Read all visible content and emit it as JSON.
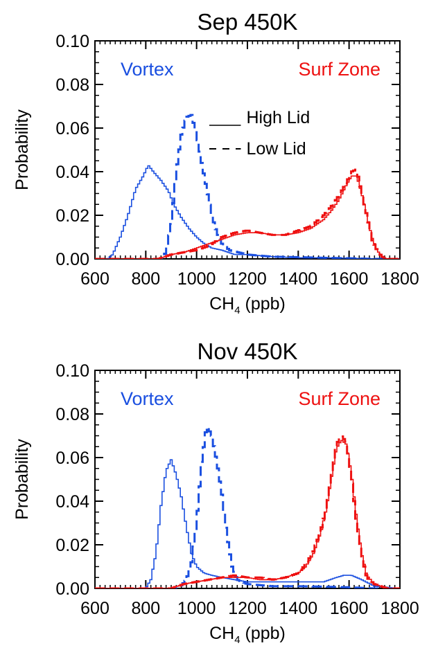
{
  "chart_data": [
    {
      "type": "line",
      "title": "Sep  450K",
      "xlabel": "CH",
      "xlabel_sub": "4",
      "xlabel_unit": " (ppb)",
      "ylabel": "Probability",
      "xlim": [
        600,
        1800
      ],
      "ylim": [
        0,
        0.1
      ],
      "xticks": [
        "600",
        "800",
        "1000",
        "1200",
        "1400",
        "1600",
        "1800"
      ],
      "yticks": [
        "0.00",
        "0.02",
        "0.04",
        "0.06",
        "0.08",
        "0.10"
      ],
      "annotations": {
        "left": "Vortex",
        "right": "Surf Zone",
        "solid": "High Lid",
        "dashed": "Low Lid"
      },
      "colors": {
        "vortex": "#1a4fe0",
        "surf": "#ee1111"
      },
      "series": [
        {
          "group": "vortex",
          "style": "solid",
          "x": [
            600,
            650,
            670,
            700,
            730,
            760,
            790,
            810,
            830,
            860,
            890,
            910,
            940,
            970,
            1000,
            1030,
            1060,
            1100,
            1150,
            1200,
            1300,
            1400,
            1500,
            1600,
            1700,
            1800
          ],
          "y": [
            0,
            0,
            0.002,
            0.01,
            0.02,
            0.032,
            0.038,
            0.043,
            0.04,
            0.036,
            0.031,
            0.025,
            0.019,
            0.014,
            0.01,
            0.007,
            0.005,
            0.004,
            0.002,
            0.002,
            0.001,
            0.0005,
            0.0005,
            0.0003,
            0,
            0
          ]
        },
        {
          "group": "vortex",
          "style": "dashed",
          "x": [
            600,
            860,
            880,
            900,
            920,
            940,
            960,
            980,
            1000,
            1020,
            1040,
            1060,
            1080,
            1100,
            1130,
            1200,
            1300,
            1400,
            1500,
            1600,
            1700,
            1800
          ],
          "y": [
            0,
            0,
            0.003,
            0.016,
            0.04,
            0.057,
            0.065,
            0.066,
            0.057,
            0.044,
            0.032,
            0.02,
            0.012,
            0.007,
            0.004,
            0.002,
            0.001,
            0.0008,
            0.0005,
            0.0003,
            0,
            0
          ]
        },
        {
          "group": "surf",
          "style": "solid",
          "x": [
            600,
            850,
            900,
            950,
            1000,
            1050,
            1100,
            1150,
            1200,
            1250,
            1300,
            1350,
            1400,
            1450,
            1500,
            1530,
            1560,
            1590,
            1610,
            1630,
            1650,
            1670,
            1690,
            1710,
            1730,
            1750,
            1800
          ],
          "y": [
            0,
            0,
            0.002,
            0.003,
            0.005,
            0.007,
            0.009,
            0.011,
            0.012,
            0.012,
            0.011,
            0.011,
            0.012,
            0.014,
            0.018,
            0.022,
            0.027,
            0.034,
            0.038,
            0.038,
            0.03,
            0.02,
            0.01,
            0.004,
            0.001,
            0,
            0
          ]
        },
        {
          "group": "surf",
          "style": "dashed",
          "x": [
            600,
            850,
            900,
            950,
            1000,
            1050,
            1100,
            1150,
            1200,
            1250,
            1300,
            1350,
            1400,
            1450,
            1500,
            1530,
            1560,
            1590,
            1610,
            1630,
            1650,
            1670,
            1690,
            1710,
            1730,
            1750,
            1800
          ],
          "y": [
            0,
            0,
            0.002,
            0.003,
            0.004,
            0.006,
            0.01,
            0.012,
            0.013,
            0.012,
            0.011,
            0.011,
            0.013,
            0.015,
            0.02,
            0.024,
            0.029,
            0.035,
            0.04,
            0.041,
            0.03,
            0.02,
            0.009,
            0.004,
            0.001,
            0,
            0
          ]
        }
      ]
    },
    {
      "type": "line",
      "title": "Nov  450K",
      "xlabel": "CH",
      "xlabel_sub": "4",
      "xlabel_unit": " (ppb)",
      "ylabel": "Probability",
      "xlim": [
        600,
        1800
      ],
      "ylim": [
        0,
        0.1
      ],
      "xticks": [
        "600",
        "800",
        "1000",
        "1200",
        "1400",
        "1600",
        "1800"
      ],
      "yticks": [
        "0.00",
        "0.02",
        "0.04",
        "0.06",
        "0.08",
        "0.10"
      ],
      "annotations": {
        "left": "Vortex",
        "right": "Surf Zone"
      },
      "colors": {
        "vortex": "#1a4fe0",
        "surf": "#ee1111"
      },
      "series": [
        {
          "group": "vortex",
          "style": "solid",
          "x": [
            600,
            800,
            820,
            840,
            860,
            880,
            900,
            920,
            940,
            960,
            980,
            1000,
            1030,
            1060,
            1100,
            1150,
            1200,
            1300,
            1400,
            1500,
            1550,
            1580,
            1610,
            1650,
            1700,
            1800
          ],
          "y": [
            0,
            0,
            0.004,
            0.016,
            0.038,
            0.054,
            0.059,
            0.052,
            0.042,
            0.028,
            0.016,
            0.01,
            0.007,
            0.006,
            0.005,
            0.004,
            0.003,
            0.003,
            0.003,
            0.003,
            0.005,
            0.006,
            0.006,
            0.004,
            0.001,
            0
          ]
        },
        {
          "group": "vortex",
          "style": "dashed",
          "x": [
            600,
            930,
            960,
            980,
            1000,
            1020,
            1040,
            1060,
            1080,
            1100,
            1120,
            1140,
            1160,
            1200,
            1300,
            1400,
            1500,
            1600,
            1700,
            1800
          ],
          "y": [
            0,
            0,
            0.004,
            0.012,
            0.03,
            0.058,
            0.075,
            0.07,
            0.058,
            0.043,
            0.024,
            0.01,
            0.004,
            0.002,
            0.001,
            0.001,
            0.0008,
            0.0005,
            0,
            0
          ]
        },
        {
          "group": "surf",
          "style": "solid",
          "x": [
            600,
            900,
            950,
            1000,
            1050,
            1100,
            1150,
            1200,
            1250,
            1300,
            1350,
            1400,
            1430,
            1460,
            1490,
            1510,
            1530,
            1550,
            1570,
            1590,
            1610,
            1630,
            1650,
            1670,
            1700,
            1750,
            1800
          ],
          "y": [
            0,
            0,
            0.002,
            0.003,
            0.004,
            0.005,
            0.005,
            0.005,
            0.004,
            0.004,
            0.005,
            0.007,
            0.01,
            0.016,
            0.026,
            0.036,
            0.05,
            0.064,
            0.068,
            0.066,
            0.052,
            0.032,
            0.016,
            0.006,
            0.002,
            0,
            0
          ]
        },
        {
          "group": "surf",
          "style": "dashed",
          "x": [
            600,
            900,
            950,
            1000,
            1050,
            1100,
            1150,
            1200,
            1250,
            1300,
            1350,
            1400,
            1430,
            1460,
            1490,
            1510,
            1530,
            1550,
            1570,
            1590,
            1610,
            1630,
            1650,
            1670,
            1700,
            1750,
            1800
          ],
          "y": [
            0,
            0,
            0.002,
            0.003,
            0.004,
            0.005,
            0.006,
            0.005,
            0.005,
            0.004,
            0.005,
            0.007,
            0.011,
            0.017,
            0.027,
            0.037,
            0.052,
            0.066,
            0.07,
            0.067,
            0.05,
            0.03,
            0.015,
            0.005,
            0.002,
            0,
            0
          ]
        }
      ]
    }
  ]
}
